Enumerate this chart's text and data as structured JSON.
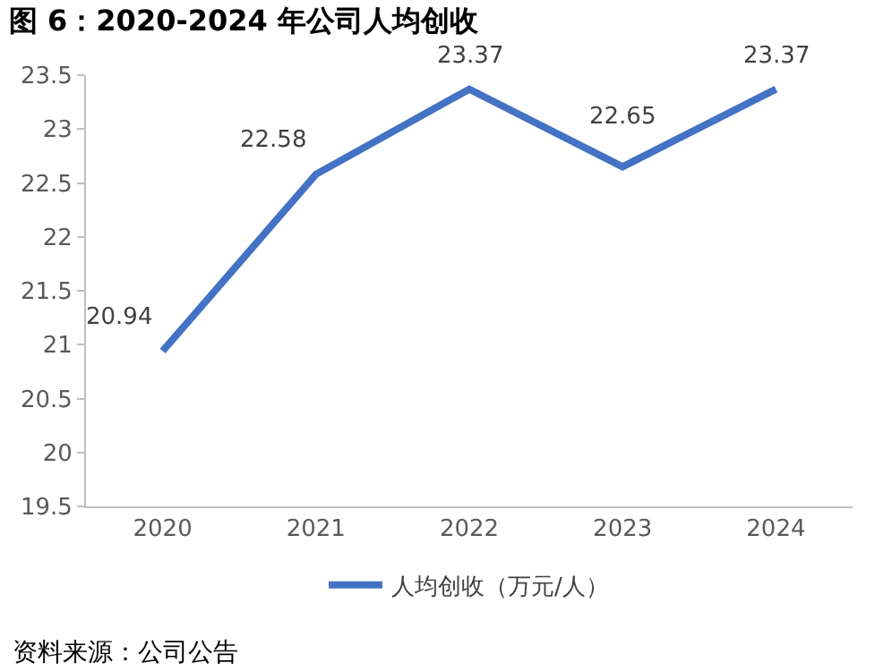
{
  "chart_data": {
    "type": "line",
    "title": "图 6：2020-2024 年公司人均创收",
    "categories": [
      "2020",
      "2021",
      "2022",
      "2023",
      "2024"
    ],
    "series": [
      {
        "name": "人均创收（万元/人）",
        "color": "#4472c4",
        "values": [
          20.94,
          22.58,
          23.37,
          22.65,
          23.37
        ]
      }
    ],
    "ylim": [
      19.5,
      23.5
    ],
    "yticks": [
      19.5,
      20,
      20.5,
      21,
      21.5,
      22,
      22.5,
      23,
      23.5
    ],
    "data_labels": true,
    "grid": false,
    "legend": "bottom",
    "marker": "none",
    "line_style": "solid",
    "annotations": [
      "资料来源：公司公告"
    ]
  }
}
